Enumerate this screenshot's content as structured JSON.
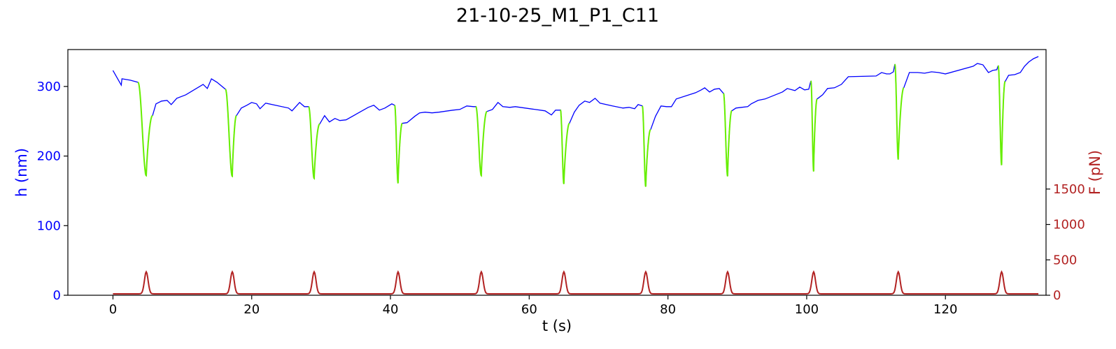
{
  "chart_data": {
    "type": "line",
    "title": "21-10-25_M1_P1_C11",
    "xlabel": "t (s)",
    "ylabel_left": "h (nm)",
    "ylabel_right": "F (pN)",
    "xlim": [
      -6.5,
      134.5
    ],
    "ylim_left": [
      0,
      353
    ],
    "ylim_right": [
      0,
      3470
    ],
    "x_ticks": [
      0,
      20,
      40,
      60,
      80,
      100,
      120
    ],
    "y_left_ticks": [
      0,
      100,
      200,
      300
    ],
    "y_right_ticks": [
      0,
      500,
      1000,
      1500
    ],
    "grid": false,
    "colors": {
      "height_line": "#0000ff",
      "compression": "#66ee00",
      "force": "#b22222",
      "left_axis_text": "#0000ff",
      "right_axis_text": "#b22222",
      "frame": "#000000"
    },
    "series": [
      {
        "role": "height",
        "points": [
          [
            0,
            323
          ],
          [
            1.2,
            302
          ],
          [
            1.3,
            311
          ],
          [
            2.5,
            309
          ],
          [
            3.6,
            306
          ],
          [
            5.7,
            258
          ],
          [
            6.2,
            275
          ],
          [
            7.0,
            279
          ],
          [
            7.8,
            280
          ],
          [
            8.4,
            274
          ],
          [
            9.2,
            283
          ],
          [
            10.5,
            288
          ],
          [
            13.0,
            303
          ],
          [
            13.6,
            297
          ],
          [
            14.2,
            311
          ],
          [
            15.0,
            306
          ],
          [
            16.2,
            296
          ],
          [
            17.8,
            258
          ],
          [
            18.5,
            269
          ],
          [
            19.3,
            273
          ],
          [
            20.0,
            277
          ],
          [
            20.7,
            275
          ],
          [
            21.2,
            268
          ],
          [
            22.0,
            276
          ],
          [
            25.3,
            269
          ],
          [
            25.8,
            265
          ],
          [
            26.9,
            277
          ],
          [
            27.6,
            271
          ],
          [
            28.2,
            271
          ],
          [
            29.8,
            246
          ],
          [
            30.5,
            258
          ],
          [
            31.2,
            249
          ],
          [
            32.0,
            254
          ],
          [
            32.7,
            251
          ],
          [
            33.6,
            252
          ],
          [
            36.8,
            270
          ],
          [
            37.6,
            273
          ],
          [
            38.4,
            266
          ],
          [
            39.2,
            269
          ],
          [
            40.2,
            275
          ],
          [
            40.6,
            273
          ],
          [
            41.7,
            247
          ],
          [
            42.4,
            248
          ],
          [
            43.5,
            257
          ],
          [
            44.2,
            262
          ],
          [
            45.0,
            263
          ],
          [
            46.0,
            262
          ],
          [
            47.0,
            263
          ],
          [
            49.0,
            266
          ],
          [
            50.0,
            267
          ],
          [
            51.0,
            272
          ],
          [
            52.0,
            271
          ],
          [
            52.3,
            271
          ],
          [
            53.9,
            264
          ],
          [
            54.7,
            267
          ],
          [
            55.5,
            277
          ],
          [
            56.2,
            271
          ],
          [
            57.2,
            270
          ],
          [
            58.0,
            271
          ],
          [
            62.3,
            265
          ],
          [
            63.2,
            259
          ],
          [
            63.8,
            266
          ],
          [
            64.5,
            266
          ],
          [
            65.8,
            247
          ],
          [
            66.5,
            263
          ],
          [
            67.2,
            273
          ],
          [
            68.0,
            279
          ],
          [
            68.7,
            277
          ],
          [
            69.5,
            283
          ],
          [
            70.2,
            276
          ],
          [
            72.0,
            272
          ],
          [
            73.5,
            269
          ],
          [
            74.4,
            270
          ],
          [
            75.2,
            268
          ],
          [
            75.7,
            274
          ],
          [
            76.3,
            272
          ],
          [
            77.5,
            238
          ],
          [
            78.2,
            257
          ],
          [
            79.0,
            272
          ],
          [
            79.8,
            271
          ],
          [
            80.5,
            271
          ],
          [
            81.2,
            282
          ],
          [
            84.0,
            291
          ],
          [
            84.8,
            295
          ],
          [
            85.3,
            298
          ],
          [
            86.0,
            292
          ],
          [
            86.7,
            296
          ],
          [
            87.4,
            297
          ],
          [
            88.0,
            290
          ],
          [
            89.2,
            265
          ],
          [
            89.8,
            269
          ],
          [
            90.6,
            270
          ],
          [
            91.5,
            271
          ],
          [
            92.0,
            275
          ],
          [
            93.0,
            280
          ],
          [
            94.0,
            282
          ],
          [
            96.5,
            292
          ],
          [
            97.2,
            297
          ],
          [
            98.3,
            294
          ],
          [
            99.0,
            299
          ],
          [
            99.7,
            295
          ],
          [
            100.3,
            296
          ],
          [
            100.6,
            308
          ],
          [
            101.5,
            282
          ],
          [
            102.3,
            288
          ],
          [
            103.0,
            297
          ],
          [
            104.0,
            298
          ],
          [
            105.0,
            303
          ],
          [
            106.0,
            314
          ],
          [
            110.0,
            315
          ],
          [
            110.8,
            320
          ],
          [
            111.5,
            318
          ],
          [
            112.0,
            318
          ],
          [
            112.5,
            321
          ],
          [
            112.7,
            332
          ],
          [
            114.0,
            298
          ],
          [
            114.8,
            320
          ],
          [
            116.0,
            320
          ],
          [
            117.0,
            319
          ],
          [
            118.0,
            321
          ],
          [
            119.0,
            320
          ],
          [
            120.0,
            318
          ],
          [
            124.0,
            329
          ],
          [
            124.6,
            333
          ],
          [
            125.4,
            331
          ],
          [
            126.2,
            320
          ],
          [
            126.8,
            323
          ],
          [
            127.4,
            324
          ],
          [
            127.6,
            330
          ],
          [
            128.6,
            307
          ],
          [
            129.1,
            316
          ],
          [
            130.0,
            317
          ],
          [
            130.8,
            320
          ],
          [
            131.4,
            329
          ],
          [
            132.0,
            335
          ],
          [
            132.7,
            340
          ],
          [
            133.4,
            343
          ]
        ]
      },
      {
        "role": "compression",
        "cycles": [
          {
            "start": 3.6,
            "start_h": 306,
            "min_t": 4.8,
            "min_h": 172,
            "end": 5.7,
            "end_h": 258
          },
          {
            "start": 16.2,
            "start_h": 296,
            "min_t": 17.2,
            "min_h": 171,
            "end": 17.8,
            "end_h": 258
          },
          {
            "start": 28.2,
            "start_h": 271,
            "min_t": 29.0,
            "min_h": 168,
            "end": 29.8,
            "end_h": 246
          },
          {
            "start": 40.6,
            "start_h": 273,
            "min_t": 41.1,
            "min_h": 161,
            "end": 41.7,
            "end_h": 247
          },
          {
            "start": 52.3,
            "start_h": 271,
            "min_t": 53.1,
            "min_h": 172,
            "end": 53.9,
            "end_h": 264
          },
          {
            "start": 64.5,
            "start_h": 266,
            "min_t": 65.0,
            "min_h": 160,
            "end": 65.8,
            "end_h": 247
          },
          {
            "start": 76.3,
            "start_h": 272,
            "min_t": 76.8,
            "min_h": 156,
            "end": 77.5,
            "end_h": 238
          },
          {
            "start": 88.0,
            "start_h": 290,
            "min_t": 88.6,
            "min_h": 171,
            "end": 89.2,
            "end_h": 265
          },
          {
            "start": 100.6,
            "start_h": 308,
            "min_t": 101.0,
            "min_h": 178,
            "end": 101.5,
            "end_h": 282
          },
          {
            "start": 112.7,
            "start_h": 332,
            "min_t": 113.2,
            "min_h": 195,
            "end": 114.0,
            "end_h": 298
          },
          {
            "start": 127.6,
            "start_h": 330,
            "min_t": 128.1,
            "min_h": 187,
            "end": 128.6,
            "end_h": 307
          }
        ]
      },
      {
        "role": "force",
        "baseline": 20,
        "peak": 330,
        "peaks_t": [
          4.8,
          17.2,
          29.0,
          41.1,
          53.1,
          65.0,
          76.8,
          88.6,
          101.0,
          113.2,
          128.1
        ],
        "x_range": [
          0,
          133.4
        ]
      }
    ]
  }
}
